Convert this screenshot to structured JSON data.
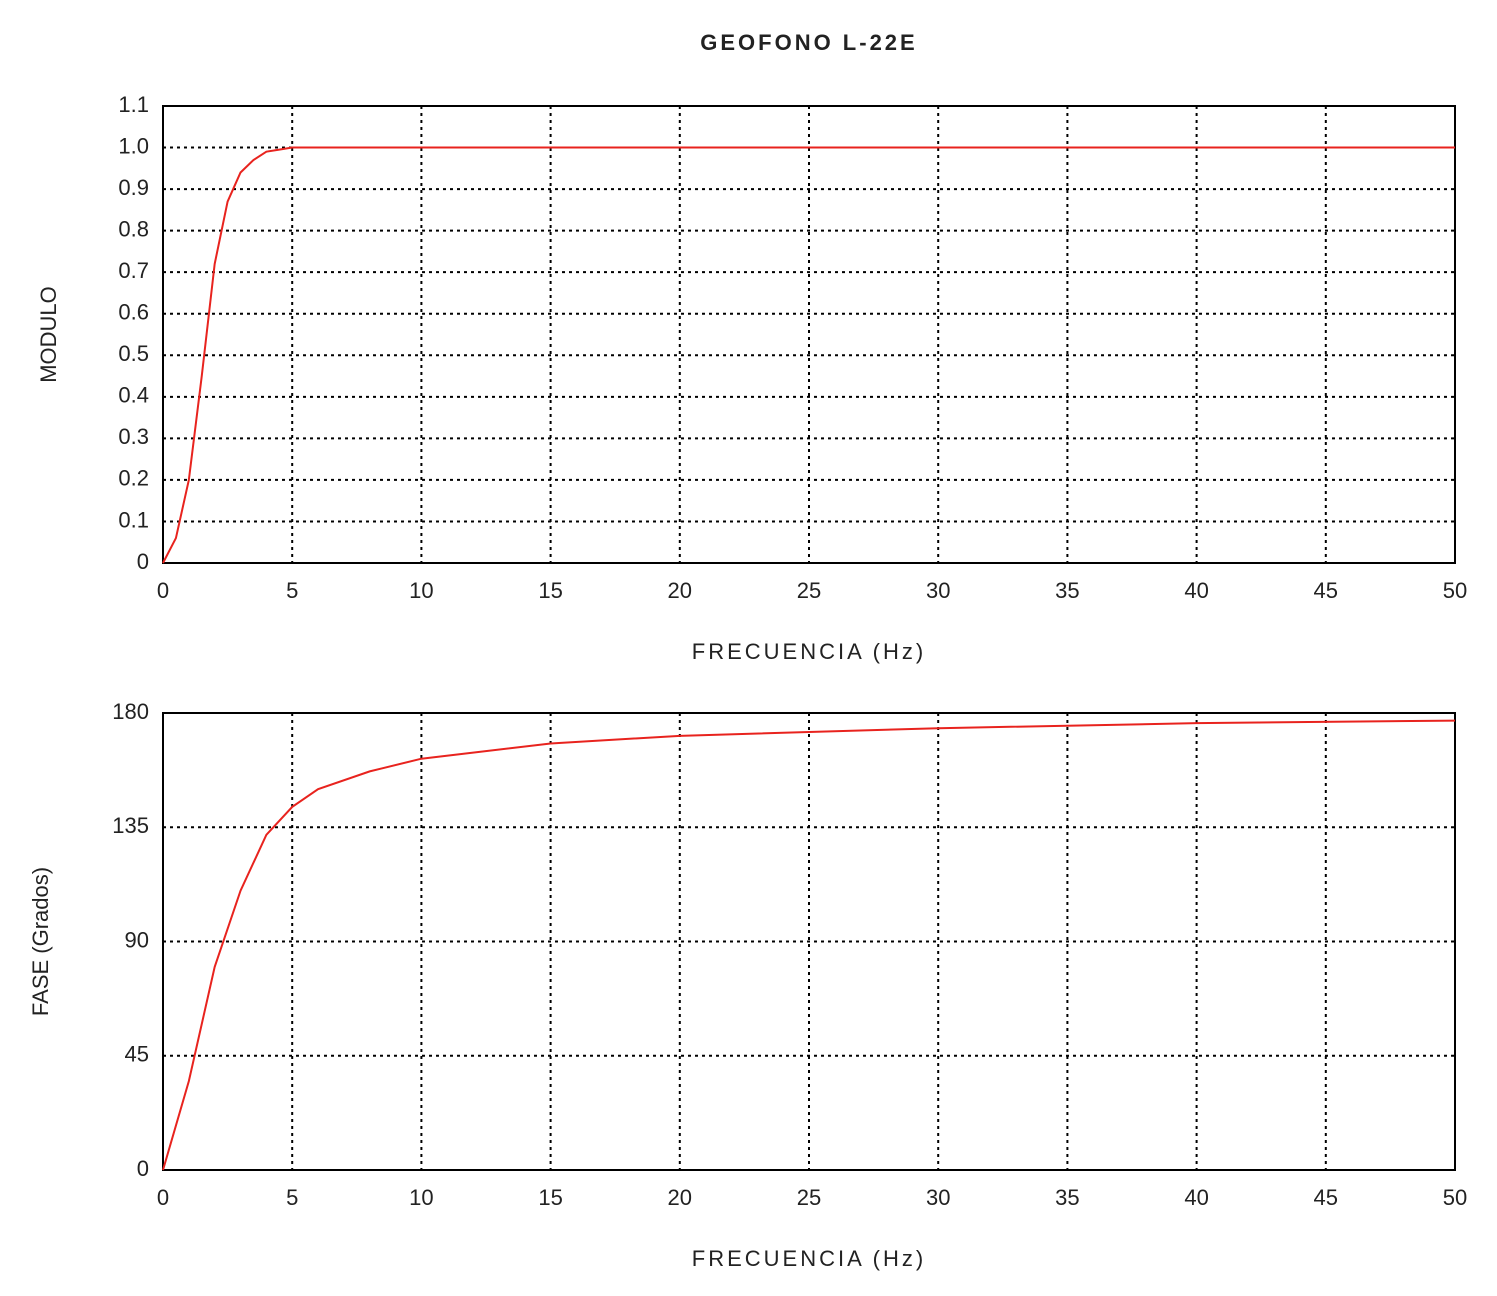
{
  "chart_data": [
    {
      "type": "line",
      "title": "GEOFONO L-22E",
      "x_label": "FRECUENCIA (Hz)",
      "y_label": "MODULO",
      "x": [
        0,
        0.5,
        1,
        1.5,
        2,
        2.5,
        3,
        3.5,
        4,
        4.5,
        5,
        6,
        8,
        10,
        15,
        20,
        25,
        30,
        35,
        40,
        45,
        50
      ],
      "values": [
        0,
        0.06,
        0.2,
        0.45,
        0.72,
        0.87,
        0.94,
        0.97,
        0.99,
        0.995,
        1,
        1,
        1,
        1,
        1,
        1,
        1,
        1,
        1,
        1,
        1,
        1
      ],
      "color": "#e8231e",
      "grid": true,
      "xlim": [
        0,
        50
      ],
      "xticks": [
        0,
        5,
        10,
        15,
        20,
        25,
        30,
        35,
        40,
        45,
        50
      ],
      "ylim": [
        0,
        1.1
      ],
      "yticks": [
        0,
        0.1,
        0.2,
        0.3,
        0.4,
        0.5,
        0.6,
        0.7,
        0.8,
        0.9,
        {
          "value": 1,
          "label": "1.0"
        },
        1.1
      ]
    },
    {
      "type": "line",
      "x_label": "FRECUENCIA (Hz)",
      "y_label": "FASE (Grados)",
      "x": [
        0,
        1,
        2,
        3,
        4,
        5,
        6,
        8,
        10,
        15,
        20,
        30,
        40,
        50
      ],
      "values": [
        0,
        35,
        80,
        110,
        132,
        143,
        150,
        157,
        162,
        168,
        171,
        174,
        176,
        177
      ],
      "color": "#e8231e",
      "grid": true,
      "xlim": [
        0,
        50
      ],
      "xticks": [
        0,
        5,
        10,
        15,
        20,
        25,
        30,
        35,
        40,
        45,
        50
      ],
      "ylim": [
        0,
        180
      ],
      "yticks": [
        0,
        45,
        90,
        135,
        180
      ]
    }
  ]
}
